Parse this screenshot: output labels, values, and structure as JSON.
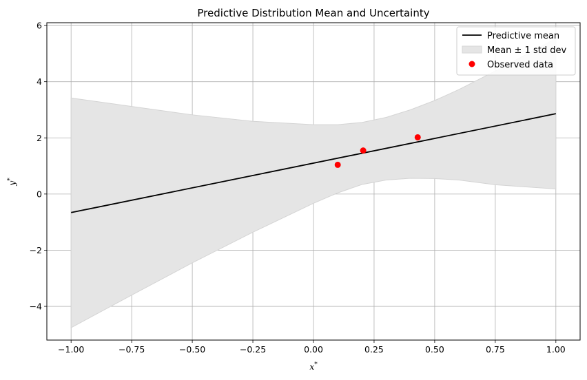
{
  "chart_data": {
    "type": "line",
    "title": "Predictive Distribution Mean and Uncertainty",
    "xlabel": "x*",
    "ylabel": "y*",
    "xlim": [
      -1.1,
      1.1
    ],
    "ylim": [
      -5.2,
      6.1
    ],
    "xticks": [
      -1.0,
      -0.75,
      -0.5,
      -0.25,
      0.0,
      0.25,
      0.5,
      0.75,
      1.0
    ],
    "xtick_labels": [
      "−1.00",
      "−0.75",
      "−0.50",
      "−0.25",
      "0.00",
      "0.25",
      "0.50",
      "0.75",
      "1.00"
    ],
    "yticks": [
      -4,
      -2,
      0,
      2,
      4,
      6
    ],
    "ytick_labels": [
      "−4",
      "−2",
      "0",
      "2",
      "4",
      "6"
    ],
    "grid": true,
    "legend_position": "top-right",
    "legend": [
      {
        "label": "Predictive mean",
        "kind": "line"
      },
      {
        "label": "Mean ± 1 std dev",
        "kind": "band"
      },
      {
        "label": "Observed data",
        "kind": "marker"
      }
    ],
    "series": [
      {
        "name": "Predictive mean",
        "kind": "line",
        "color": "#000000",
        "x": [
          -1.0,
          1.0
        ],
        "y": [
          -0.66,
          2.86
        ]
      },
      {
        "name": "Mean ± 1 std dev",
        "kind": "band",
        "color": "#e5e5e5",
        "x": [
          -1.0,
          -0.75,
          -0.5,
          -0.25,
          0.0,
          0.1,
          0.2,
          0.3,
          0.4,
          0.5,
          0.6,
          0.75,
          1.0
        ],
        "upper": [
          3.42,
          3.12,
          2.82,
          2.59,
          2.47,
          2.47,
          2.55,
          2.73,
          3.0,
          3.33,
          3.72,
          4.38,
          5.54
        ],
        "lower": [
          -4.76,
          -3.6,
          -2.45,
          -1.36,
          -0.33,
          0.04,
          0.34,
          0.5,
          0.56,
          0.55,
          0.5,
          0.33,
          0.18
        ]
      },
      {
        "name": "Observed data",
        "kind": "scatter",
        "color": "#ff0000",
        "x": [
          0.1,
          0.205,
          0.43
        ],
        "y": [
          1.04,
          1.55,
          2.02
        ]
      }
    ]
  }
}
